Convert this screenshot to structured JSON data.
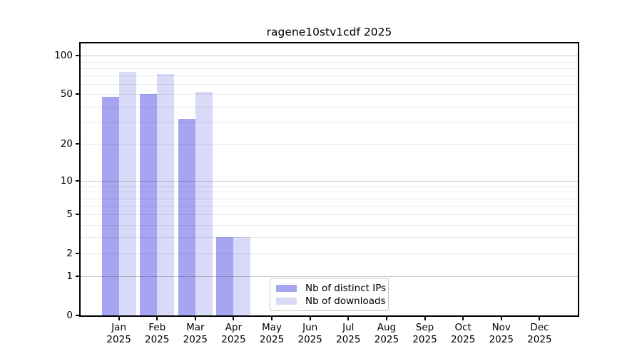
{
  "chart_data": {
    "type": "bar",
    "title": "ragene10stv1cdf 2025",
    "categories": [
      "Jan",
      "Feb",
      "Mar",
      "Apr",
      "May",
      "Jun",
      "Jul",
      "Aug",
      "Sep",
      "Oct",
      "Nov",
      "Dec"
    ],
    "x_year_label": "2025",
    "series": [
      {
        "name": "Nb of distinct IPs",
        "color": "#a5a5f2",
        "values": [
          48,
          50,
          32,
          3,
          0,
          0,
          0,
          0,
          0,
          0,
          0,
          0
        ]
      },
      {
        "name": "Nb of downloads",
        "color": "#d9d9f8",
        "values": [
          75,
          72,
          52,
          3,
          0,
          0,
          0,
          0,
          0,
          0,
          0,
          0
        ]
      }
    ],
    "y_axis": {
      "scale": "log1p",
      "ticks": [
        0,
        1,
        2,
        5,
        10,
        20,
        50,
        100
      ],
      "max": 128,
      "minor_gridlines": [
        2,
        3,
        4,
        5,
        6,
        7,
        8,
        9,
        20,
        30,
        40,
        50,
        60,
        70,
        80,
        90
      ],
      "decade_gridlines": [
        1,
        10,
        100
      ]
    },
    "xlabel": "",
    "ylabel": "",
    "grid": true,
    "legend_position": "bottom-center",
    "colors": {
      "bar_distinct_ips": "#a5a5f2",
      "bar_downloads": "#d9d9f8",
      "minor_grid": "#e9e9e9",
      "decade_grid": "#c8c8c8",
      "spine": "#000000",
      "legend_border": "#c4c4c4",
      "background": "#ffffff"
    }
  }
}
